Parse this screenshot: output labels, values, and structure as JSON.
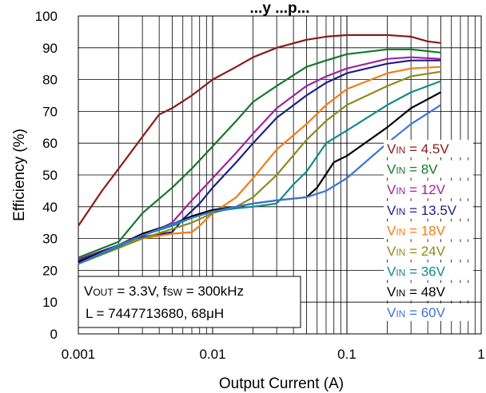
{
  "chart_data": {
    "type": "line",
    "title": "...y ...p...",
    "xlabel": "Output Current (A)",
    "ylabel": "Efficiency (%)",
    "xscale": "log",
    "xlim": [
      0.001,
      1
    ],
    "ylim": [
      0,
      100
    ],
    "x_ticks": [
      "0.001",
      "0.01",
      "0.1",
      "1"
    ],
    "y_ticks": [
      "0",
      "10",
      "20",
      "30",
      "40",
      "50",
      "60",
      "70",
      "80",
      "90",
      "100"
    ],
    "grid": "on",
    "legend_position": "right",
    "annotation": {
      "line1": {
        "a": "V",
        "a_sub": "OUT",
        "b": " = 3.3V, f",
        "b_sub": "SW",
        "c": " = 300kHz"
      },
      "line2": "L = 7447713680, 68μH"
    },
    "series": [
      {
        "name": "4.5V",
        "legend_main": "V",
        "legend_sub": "IN",
        "legend_value": " = 4.5V",
        "color": "#8b1a1a",
        "points": [
          [
            0.001,
            34
          ],
          [
            0.0015,
            45
          ],
          [
            0.002,
            52
          ],
          [
            0.003,
            62
          ],
          [
            0.004,
            69
          ],
          [
            0.005,
            71
          ],
          [
            0.007,
            75
          ],
          [
            0.01,
            80
          ],
          [
            0.015,
            84
          ],
          [
            0.02,
            87
          ],
          [
            0.03,
            90
          ],
          [
            0.05,
            92.5
          ],
          [
            0.07,
            93.5
          ],
          [
            0.1,
            94
          ],
          [
            0.2,
            94
          ],
          [
            0.3,
            93.5
          ],
          [
            0.4,
            92
          ],
          [
            0.5,
            91.5
          ]
        ]
      },
      {
        "name": "8V",
        "legend_main": "V",
        "legend_sub": "IN",
        "legend_value": " = 8V",
        "color": "#117a2a",
        "points": [
          [
            0.001,
            24
          ],
          [
            0.002,
            29
          ],
          [
            0.003,
            38
          ],
          [
            0.005,
            46
          ],
          [
            0.007,
            52
          ],
          [
            0.01,
            59
          ],
          [
            0.015,
            67
          ],
          [
            0.02,
            73
          ],
          [
            0.03,
            78
          ],
          [
            0.05,
            84
          ],
          [
            0.07,
            86
          ],
          [
            0.1,
            88
          ],
          [
            0.2,
            89.5
          ],
          [
            0.3,
            89.5
          ],
          [
            0.5,
            88.5
          ]
        ]
      },
      {
        "name": "12V",
        "legend_main": "V",
        "legend_sub": "IN",
        "legend_value": " = 12V",
        "color": "#a1239c",
        "points": [
          [
            0.001,
            23.5
          ],
          [
            0.002,
            28
          ],
          [
            0.003,
            31
          ],
          [
            0.004,
            33
          ],
          [
            0.005,
            35
          ],
          [
            0.007,
            42
          ],
          [
            0.01,
            49
          ],
          [
            0.015,
            57
          ],
          [
            0.02,
            63
          ],
          [
            0.03,
            71
          ],
          [
            0.05,
            78
          ],
          [
            0.07,
            81
          ],
          [
            0.1,
            83.5
          ],
          [
            0.2,
            86.5
          ],
          [
            0.3,
            87
          ],
          [
            0.5,
            86.5
          ]
        ]
      },
      {
        "name": "13.5V",
        "legend_main": "V",
        "legend_sub": "IN",
        "legend_value": " = 13.5V",
        "color": "#1f1f8a",
        "points": [
          [
            0.001,
            23
          ],
          [
            0.002,
            28
          ],
          [
            0.003,
            30.5
          ],
          [
            0.005,
            32
          ],
          [
            0.006,
            36
          ],
          [
            0.008,
            41
          ],
          [
            0.01,
            46
          ],
          [
            0.015,
            54
          ],
          [
            0.02,
            60
          ],
          [
            0.03,
            68
          ],
          [
            0.05,
            75
          ],
          [
            0.07,
            79
          ],
          [
            0.1,
            82
          ],
          [
            0.2,
            85
          ],
          [
            0.3,
            86
          ],
          [
            0.5,
            86
          ]
        ]
      },
      {
        "name": "18V",
        "legend_main": "V",
        "legend_sub": "IN",
        "legend_value": " = 18V",
        "color": "#f57c15",
        "points": [
          [
            0.001,
            22.5
          ],
          [
            0.002,
            28
          ],
          [
            0.003,
            30
          ],
          [
            0.005,
            31.5
          ],
          [
            0.007,
            32
          ],
          [
            0.008,
            34
          ],
          [
            0.01,
            38
          ],
          [
            0.015,
            43
          ],
          [
            0.02,
            49
          ],
          [
            0.03,
            58
          ],
          [
            0.05,
            66
          ],
          [
            0.07,
            72
          ],
          [
            0.1,
            77
          ],
          [
            0.2,
            82
          ],
          [
            0.3,
            83.5
          ],
          [
            0.5,
            84
          ]
        ]
      },
      {
        "name": "24V",
        "legend_main": "V",
        "legend_sub": "IN",
        "legend_value": " = 24V",
        "color": "#8c8c1a",
        "points": [
          [
            0.001,
            22
          ],
          [
            0.002,
            27
          ],
          [
            0.003,
            30
          ],
          [
            0.005,
            33
          ],
          [
            0.007,
            35
          ],
          [
            0.01,
            38
          ],
          [
            0.015,
            40
          ],
          [
            0.02,
            43
          ],
          [
            0.03,
            50
          ],
          [
            0.05,
            61
          ],
          [
            0.07,
            67
          ],
          [
            0.1,
            72
          ],
          [
            0.2,
            78
          ],
          [
            0.3,
            81
          ],
          [
            0.5,
            82.5
          ]
        ]
      },
      {
        "name": "36V",
        "legend_main": "V",
        "legend_sub": "IN",
        "legend_value": " = 36V",
        "color": "#138a8a",
        "points": [
          [
            0.001,
            22
          ],
          [
            0.002,
            27.5
          ],
          [
            0.003,
            31
          ],
          [
            0.005,
            34
          ],
          [
            0.007,
            36.5
          ],
          [
            0.01,
            38.5
          ],
          [
            0.015,
            39.5
          ],
          [
            0.02,
            40
          ],
          [
            0.03,
            41
          ],
          [
            0.04,
            47
          ],
          [
            0.05,
            51
          ],
          [
            0.07,
            60
          ],
          [
            0.1,
            64
          ],
          [
            0.2,
            72
          ],
          [
            0.3,
            76
          ],
          [
            0.5,
            79.5
          ]
        ]
      },
      {
        "name": "48V",
        "legend_main": "V",
        "legend_sub": "IN",
        "legend_value": " = 48V",
        "color": "#000000",
        "points": [
          [
            0.001,
            22.5
          ],
          [
            0.002,
            28
          ],
          [
            0.003,
            31.5
          ],
          [
            0.005,
            34.5
          ],
          [
            0.007,
            37
          ],
          [
            0.01,
            39
          ],
          [
            0.015,
            40
          ],
          [
            0.02,
            41
          ],
          [
            0.03,
            42
          ],
          [
            0.05,
            43
          ],
          [
            0.06,
            46
          ],
          [
            0.08,
            54
          ],
          [
            0.1,
            56
          ],
          [
            0.2,
            65
          ],
          [
            0.3,
            71
          ],
          [
            0.5,
            76
          ]
        ]
      },
      {
        "name": "60V",
        "legend_main": "V",
        "legend_sub": "IN",
        "legend_value": " = 60V",
        "color": "#3a76d6",
        "points": [
          [
            0.001,
            22
          ],
          [
            0.002,
            28
          ],
          [
            0.003,
            31
          ],
          [
            0.005,
            34.5
          ],
          [
            0.007,
            36.5
          ],
          [
            0.01,
            38.5
          ],
          [
            0.015,
            40
          ],
          [
            0.02,
            41
          ],
          [
            0.03,
            42
          ],
          [
            0.05,
            43
          ],
          [
            0.07,
            45
          ],
          [
            0.1,
            49
          ],
          [
            0.2,
            60
          ],
          [
            0.3,
            66
          ],
          [
            0.5,
            72
          ]
        ]
      }
    ]
  }
}
